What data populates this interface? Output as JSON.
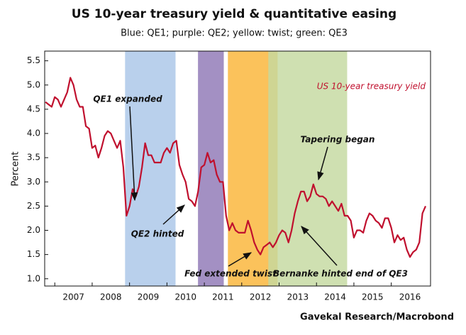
{
  "chart_data": {
    "type": "line",
    "title": "US 10-year treasury yield & quantitative easing",
    "subtitle": "Blue: QE1; purple: QE2; yellow: twist; green: QE3",
    "y_label": "Percent",
    "source": "Gavekal Research/Macrobond",
    "annotations": [
      "QE1 expanded",
      "QE2 hinted",
      "Fed extended twist",
      "Tapering began",
      "Bernanke hinted end of QE3"
    ],
    "regions": [
      {
        "start": 2008.88,
        "end": 2010.23,
        "color": "#b9d0ec"
      },
      {
        "start": 2010.83,
        "end": 2011.52,
        "color": "#a390c3"
      },
      {
        "start": 2011.63,
        "end": 2012.96,
        "color": "#fbc25b"
      },
      {
        "start": 2012.71,
        "end": 2014.82,
        "color": "#c4d9a0"
      }
    ],
    "xlim": [
      2006.73,
      2017.05
    ],
    "xticks": [
      {
        "value": 2007,
        "label": "2007"
      },
      {
        "value": 2008,
        "label": "2008"
      },
      {
        "value": 2009,
        "label": "2009"
      },
      {
        "value": 2010,
        "label": "2010"
      },
      {
        "value": 2011,
        "label": "2011"
      },
      {
        "value": 2012,
        "label": "2012"
      },
      {
        "value": 2013,
        "label": "2013"
      },
      {
        "value": 2014,
        "label": "2014"
      },
      {
        "value": 2015,
        "label": "2015"
      },
      {
        "value": 2016,
        "label": "2016"
      }
    ],
    "ylim": [
      0.85,
      5.7
    ],
    "yticks": [
      {
        "value": 1,
        "label": "1.0"
      },
      1.5,
      {
        "value": 2,
        "label": "2.0"
      },
      2.5,
      {
        "value": 3,
        "label": "3.0"
      },
      3.5,
      {
        "value": 4,
        "label": "4.0"
      },
      4.5,
      {
        "value": 5,
        "label": "5.0"
      },
      5.5
    ],
    "series": [
      {
        "name": "US 10-year treasury yield",
        "color": "#c0102e",
        "x": [
          2006.75,
          2006.833,
          2006.917,
          2007,
          2007.083,
          2007.167,
          2007.25,
          2007.333,
          2007.417,
          2007.5,
          2007.583,
          2007.667,
          2007.75,
          2007.833,
          2007.917,
          2008,
          2008.083,
          2008.167,
          2008.25,
          2008.333,
          2008.417,
          2008.5,
          2008.583,
          2008.667,
          2008.75,
          2008.833,
          2008.917,
          2009,
          2009.083,
          2009.167,
          2009.25,
          2009.333,
          2009.417,
          2009.5,
          2009.583,
          2009.667,
          2009.75,
          2009.833,
          2009.917,
          2010,
          2010.083,
          2010.167,
          2010.25,
          2010.333,
          2010.417,
          2010.5,
          2010.583,
          2010.667,
          2010.75,
          2010.833,
          2010.917,
          2011,
          2011.083,
          2011.167,
          2011.25,
          2011.333,
          2011.417,
          2011.5,
          2011.583,
          2011.667,
          2011.75,
          2011.833,
          2011.917,
          2012,
          2012.083,
          2012.167,
          2012.25,
          2012.333,
          2012.417,
          2012.5,
          2012.583,
          2012.667,
          2012.75,
          2012.833,
          2012.917,
          2013,
          2013.083,
          2013.167,
          2013.25,
          2013.333,
          2013.417,
          2013.5,
          2013.583,
          2013.667,
          2013.75,
          2013.833,
          2013.917,
          2014,
          2014.083,
          2014.167,
          2014.25,
          2014.333,
          2014.417,
          2014.5,
          2014.583,
          2014.667,
          2014.75,
          2014.833,
          2014.917,
          2015,
          2015.083,
          2015.167,
          2015.25,
          2015.333,
          2015.417,
          2015.5,
          2015.583,
          2015.667,
          2015.75,
          2015.833,
          2015.917,
          2016,
          2016.083,
          2016.167,
          2016.25,
          2016.333,
          2016.417,
          2016.5,
          2016.583,
          2016.667,
          2016.75,
          2016.833,
          2016.917
        ],
        "values": [
          4.65,
          4.6,
          4.55,
          4.75,
          4.7,
          4.55,
          4.7,
          4.85,
          5.15,
          5.0,
          4.7,
          4.55,
          4.55,
          4.15,
          4.1,
          3.7,
          3.75,
          3.5,
          3.7,
          3.95,
          4.05,
          4.0,
          3.85,
          3.7,
          3.85,
          3.3,
          2.3,
          2.5,
          2.85,
          2.7,
          2.9,
          3.3,
          3.8,
          3.55,
          3.55,
          3.4,
          3.4,
          3.4,
          3.6,
          3.7,
          3.6,
          3.8,
          3.85,
          3.35,
          3.15,
          3.0,
          2.65,
          2.6,
          2.5,
          2.8,
          3.3,
          3.35,
          3.6,
          3.4,
          3.45,
          3.15,
          3.0,
          3.0,
          2.3,
          2.0,
          2.15,
          2.0,
          1.95,
          1.95,
          1.95,
          2.2,
          2.0,
          1.75,
          1.6,
          1.5,
          1.65,
          1.7,
          1.75,
          1.65,
          1.75,
          1.9,
          2.0,
          1.95,
          1.75,
          2.0,
          2.35,
          2.6,
          2.8,
          2.8,
          2.6,
          2.7,
          2.95,
          2.75,
          2.7,
          2.7,
          2.65,
          2.5,
          2.6,
          2.5,
          2.4,
          2.55,
          2.3,
          2.3,
          2.2,
          1.85,
          2.0,
          2.0,
          1.95,
          2.2,
          2.35,
          2.3,
          2.2,
          2.15,
          2.05,
          2.25,
          2.25,
          2.05,
          1.75,
          1.9,
          1.8,
          1.85,
          1.6,
          1.45,
          1.55,
          1.6,
          1.75,
          2.35,
          2.5
        ]
      }
    ]
  }
}
